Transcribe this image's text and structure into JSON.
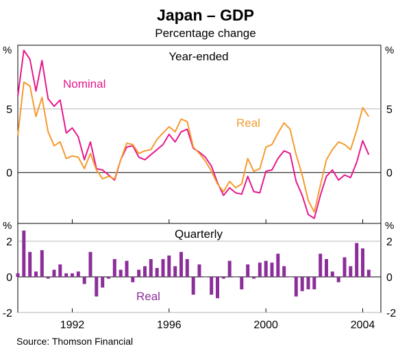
{
  "chart_data": {
    "type": "line",
    "title": "Japan – GDP",
    "subtitle": "Percentage change",
    "source": "Source: Thomson Financial",
    "unit_label": "%",
    "x_tick_labels": [
      "1992",
      "1996",
      "2000",
      "2004"
    ],
    "x_ticks": [
      1992,
      1996,
      2000,
      2004
    ],
    "x_range": [
      1989.75,
      2004.75
    ],
    "colors": {
      "nominal": "#e6178c",
      "real": "#f59a2d",
      "quarterly": "#8b2e9a",
      "grid": "#b4b4b4",
      "axis": "#000000"
    },
    "panels": [
      {
        "title": "Year-ended",
        "ylim": [
          -4,
          10
        ],
        "y_ticks": [
          0,
          5
        ],
        "y_tick_labels": [
          "0",
          "5"
        ],
        "x": [
          1989.75,
          1990.0,
          1990.25,
          1990.5,
          1990.75,
          1991.0,
          1991.25,
          1991.5,
          1991.75,
          1992.0,
          1992.25,
          1992.5,
          1992.75,
          1993.0,
          1993.25,
          1993.5,
          1993.75,
          1994.0,
          1994.25,
          1994.5,
          1994.75,
          1995.0,
          1995.25,
          1995.5,
          1995.75,
          1996.0,
          1996.25,
          1996.5,
          1996.75,
          1997.0,
          1997.25,
          1997.5,
          1997.75,
          1998.0,
          1998.25,
          1998.5,
          1998.75,
          1999.0,
          1999.25,
          1999.5,
          1999.75,
          2000.0,
          2000.25,
          2000.5,
          2000.75,
          2001.0,
          2001.25,
          2001.5,
          2001.75,
          2002.0,
          2002.25,
          2002.5,
          2002.75,
          2003.0,
          2003.25,
          2003.5,
          2003.75,
          2004.0,
          2004.25
        ],
        "series": [
          {
            "name": "Nominal",
            "key": "nominal",
            "label_position": "upper-left",
            "values": [
              6.0,
              9.6,
              8.9,
              6.4,
              8.8,
              5.8,
              5.2,
              5.7,
              3.1,
              3.5,
              2.8,
              1.0,
              2.4,
              0.3,
              0.2,
              -0.2,
              -0.6,
              1.0,
              2.0,
              2.1,
              1.2,
              1.0,
              1.4,
              1.8,
              2.2,
              3.0,
              2.4,
              3.2,
              3.4,
              1.9,
              1.6,
              1.2,
              0.5,
              -0.8,
              -1.8,
              -1.2,
              -1.6,
              -1.7,
              -0.3,
              -1.5,
              -1.6,
              0.1,
              0.2,
              1.1,
              1.7,
              1.5,
              -0.7,
              -1.8,
              -3.3,
              -3.6,
              -1.8,
              -0.3,
              0.2,
              -0.6,
              -0.2,
              -0.4,
              0.8,
              2.5,
              1.4
            ]
          },
          {
            "name": "Real",
            "key": "real",
            "label_position": "right",
            "values": [
              2.9,
              7.1,
              6.8,
              4.4,
              5.9,
              3.2,
              2.1,
              2.4,
              1.1,
              1.3,
              1.2,
              0.3,
              1.5,
              0.2,
              -0.5,
              -0.3,
              -0.5,
              1.0,
              2.3,
              2.2,
              1.5,
              1.7,
              1.8,
              2.6,
              3.1,
              3.6,
              3.2,
              4.2,
              4.0,
              2.0,
              1.5,
              0.9,
              0.1,
              -0.9,
              -1.5,
              -0.7,
              -1.2,
              -0.9,
              1.1,
              0.1,
              0.3,
              2.0,
              2.2,
              3.1,
              3.9,
              3.4,
              1.4,
              -0.2,
              -2.2,
              -3.1,
              -1.0,
              1.0,
              1.8,
              2.4,
              2.2,
              1.8,
              3.3,
              5.1,
              4.4
            ]
          }
        ]
      },
      {
        "title": "Quarterly",
        "type": "bar",
        "ylim": [
          -2,
          3
        ],
        "y_ticks": [
          -2,
          0,
          2
        ],
        "y_tick_labels": [
          "-2",
          "0",
          "2"
        ],
        "x": [
          1989.75,
          1990.0,
          1990.25,
          1990.5,
          1990.75,
          1991.0,
          1991.25,
          1991.5,
          1991.75,
          1992.0,
          1992.25,
          1992.5,
          1992.75,
          1993.0,
          1993.25,
          1993.5,
          1993.75,
          1994.0,
          1994.25,
          1994.5,
          1994.75,
          1995.0,
          1995.25,
          1995.5,
          1995.75,
          1996.0,
          1996.25,
          1996.5,
          1996.75,
          1997.0,
          1997.25,
          1997.5,
          1997.75,
          1998.0,
          1998.25,
          1998.5,
          1998.75,
          1999.0,
          1999.25,
          1999.5,
          1999.75,
          2000.0,
          2000.25,
          2000.5,
          2000.75,
          2001.0,
          2001.25,
          2001.5,
          2001.75,
          2002.0,
          2002.25,
          2002.5,
          2002.75,
          2003.0,
          2003.25,
          2003.5,
          2003.75,
          2004.0,
          2004.25
        ],
        "series": [
          {
            "name": "Real",
            "key": "quarterly",
            "label_position": "lower-left",
            "values": [
              0.2,
              2.6,
              1.4,
              0.3,
              1.5,
              -0.1,
              0.4,
              0.7,
              0.2,
              0.2,
              0.3,
              -0.4,
              1.4,
              -1.1,
              -0.6,
              -0.1,
              1.0,
              0.4,
              0.9,
              -0.3,
              0.4,
              0.6,
              1.0,
              0.5,
              1.0,
              1.2,
              0.6,
              1.4,
              1.0,
              -1.0,
              0.7,
              0.0,
              -1.0,
              -1.2,
              -0.1,
              0.9,
              0.0,
              -0.7,
              0.7,
              -0.1,
              0.8,
              0.9,
              0.8,
              1.3,
              0.6,
              0.0,
              -1.1,
              -0.8,
              -0.7,
              -0.7,
              1.3,
              1.0,
              0.3,
              -0.3,
              1.1,
              0.6,
              1.9,
              1.6,
              0.4
            ]
          }
        ]
      }
    ]
  }
}
